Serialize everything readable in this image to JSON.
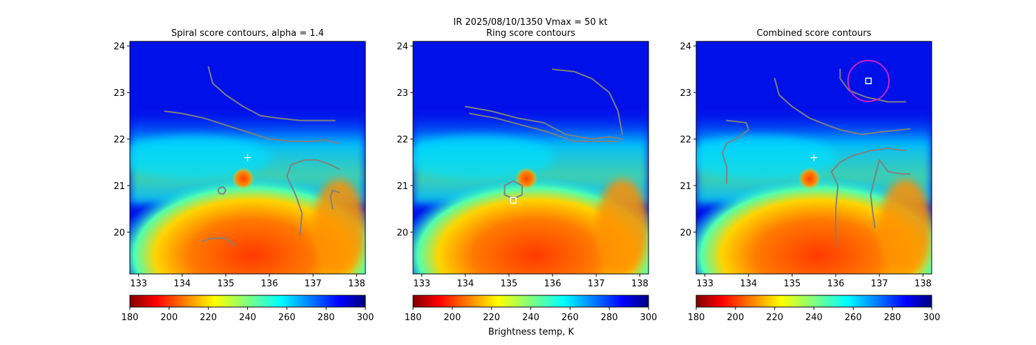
{
  "suptitle": "IR  2025/08/10/1350    Vmax = 50 kt",
  "colorbar_label": "Brightness temp, K",
  "colorbar": {
    "ticks": [
      180,
      200,
      220,
      240,
      260,
      280,
      300
    ],
    "range": [
      180,
      300
    ],
    "colormap": "jet_r"
  },
  "colors": {
    "contour": "#808080",
    "marker_cross": "#ffffff",
    "best_center": "#ffffff",
    "best_circle": "#cc22cc"
  },
  "chart_data": [
    {
      "type": "heatmap",
      "title": "Spiral score contours, alpha =  1.4",
      "xlim": [
        132.8,
        138.2
      ],
      "ylim": [
        19.1,
        24.1
      ],
      "xticks": [
        133,
        134,
        135,
        136,
        137,
        138
      ],
      "yticks": [
        20,
        21,
        22,
        23,
        24
      ],
      "cross_marker": [
        135.5,
        21.6
      ],
      "center_marker": null,
      "contours": [
        [
          [
            134.6,
            23.55
          ],
          [
            134.7,
            23.2
          ],
          [
            135.0,
            22.95
          ],
          [
            135.4,
            22.7
          ],
          [
            135.8,
            22.5
          ],
          [
            136.2,
            22.45
          ],
          [
            136.7,
            22.4
          ],
          [
            137.1,
            22.4
          ],
          [
            137.5,
            22.4
          ]
        ],
        [
          [
            133.6,
            22.6
          ],
          [
            134.0,
            22.55
          ],
          [
            134.5,
            22.45
          ],
          [
            135.0,
            22.3
          ],
          [
            135.5,
            22.15
          ],
          [
            136.0,
            22.0
          ],
          [
            136.5,
            21.95
          ],
          [
            137.0,
            21.95
          ],
          [
            137.3,
            21.98
          ],
          [
            137.6,
            21.9
          ]
        ],
        [
          [
            136.5,
            21.45
          ],
          [
            136.8,
            21.55
          ],
          [
            137.1,
            21.55
          ],
          [
            137.4,
            21.45
          ],
          [
            137.6,
            21.35
          ]
        ],
        [
          [
            136.5,
            21.45
          ],
          [
            136.4,
            21.2
          ],
          [
            136.6,
            20.8
          ],
          [
            136.75,
            20.4
          ],
          [
            136.7,
            19.95
          ]
        ],
        [
          [
            137.6,
            20.85
          ],
          [
            137.45,
            20.9
          ],
          [
            137.4,
            20.75
          ],
          [
            137.45,
            20.5
          ]
        ],
        [
          [
            134.45,
            19.8
          ],
          [
            134.7,
            19.87
          ],
          [
            135.0,
            19.87
          ],
          [
            135.2,
            19.72
          ]
        ],
        [
          [
            134.85,
            20.95
          ],
          [
            134.95,
            20.97
          ],
          [
            135.0,
            20.9
          ],
          [
            134.95,
            20.82
          ],
          [
            134.85,
            20.83
          ],
          [
            134.82,
            20.9
          ],
          [
            134.85,
            20.95
          ]
        ]
      ],
      "best_circle": null
    },
    {
      "type": "heatmap",
      "title": "Ring score contours",
      "xlim": [
        132.8,
        138.2
      ],
      "ylim": [
        19.1,
        24.1
      ],
      "xticks": [
        133,
        134,
        135,
        136,
        137,
        138
      ],
      "yticks": [
        20,
        21,
        22,
        23,
        24
      ],
      "cross_marker": null,
      "center_marker": [
        135.1,
        20.68
      ],
      "contours": [
        [
          [
            134.0,
            22.7
          ],
          [
            134.6,
            22.6
          ],
          [
            135.2,
            22.45
          ],
          [
            135.8,
            22.35
          ],
          [
            136.3,
            22.1
          ],
          [
            136.9,
            22.0
          ],
          [
            137.3,
            22.05
          ],
          [
            137.6,
            22.0
          ]
        ],
        [
          [
            134.1,
            22.55
          ],
          [
            134.7,
            22.45
          ],
          [
            135.3,
            22.3
          ],
          [
            135.9,
            22.15
          ],
          [
            136.5,
            21.95
          ],
          [
            137.0,
            21.95
          ],
          [
            137.5,
            21.95
          ]
        ],
        [
          [
            136.0,
            23.5
          ],
          [
            136.5,
            23.45
          ],
          [
            136.9,
            23.3
          ],
          [
            137.3,
            23.0
          ],
          [
            137.5,
            22.6
          ],
          [
            137.6,
            22.1
          ]
        ],
        [
          [
            134.9,
            21.0
          ],
          [
            135.1,
            21.1
          ],
          [
            135.3,
            21.0
          ],
          [
            135.3,
            20.8
          ],
          [
            135.1,
            20.72
          ],
          [
            134.9,
            20.8
          ],
          [
            134.9,
            21.0
          ]
        ]
      ],
      "best_circle": null
    },
    {
      "type": "heatmap",
      "title": "Combined score contours",
      "xlim": [
        132.8,
        138.2
      ],
      "ylim": [
        19.1,
        24.1
      ],
      "xticks": [
        133,
        134,
        135,
        136,
        137,
        138
      ],
      "yticks": [
        20,
        21,
        22,
        23,
        24
      ],
      "cross_marker": [
        135.5,
        21.6
      ],
      "center_marker": [
        136.75,
        23.25
      ],
      "contours": [
        [
          [
            136.1,
            23.5
          ],
          [
            136.1,
            23.3
          ],
          [
            136.3,
            23.05
          ],
          [
            136.7,
            22.9
          ],
          [
            137.2,
            22.8
          ],
          [
            137.6,
            22.8
          ]
        ],
        [
          [
            134.6,
            23.3
          ],
          [
            134.7,
            22.95
          ],
          [
            135.0,
            22.7
          ],
          [
            135.4,
            22.45
          ],
          [
            135.8,
            22.3
          ],
          [
            136.1,
            22.2
          ],
          [
            136.6,
            22.1
          ],
          [
            137.0,
            22.15
          ],
          [
            137.5,
            22.2
          ],
          [
            137.7,
            22.22
          ]
        ],
        [
          [
            135.9,
            21.3
          ],
          [
            136.1,
            21.5
          ],
          [
            136.4,
            21.65
          ],
          [
            136.8,
            21.75
          ],
          [
            137.2,
            21.8
          ],
          [
            137.6,
            21.75
          ]
        ],
        [
          [
            135.9,
            21.3
          ],
          [
            136.05,
            21.0
          ],
          [
            136.0,
            20.5
          ],
          [
            136.0,
            19.95
          ],
          [
            136.0,
            19.7
          ]
        ],
        [
          [
            137.0,
            21.55
          ],
          [
            136.9,
            21.2
          ],
          [
            136.8,
            20.8
          ],
          [
            136.85,
            20.4
          ],
          [
            136.9,
            20.1
          ]
        ],
        [
          [
            137.0,
            21.55
          ],
          [
            137.2,
            21.3
          ],
          [
            137.5,
            21.25
          ],
          [
            137.7,
            21.25
          ]
        ],
        [
          [
            133.5,
            21.9
          ],
          [
            133.4,
            21.7
          ],
          [
            133.5,
            21.4
          ],
          [
            133.5,
            21.05
          ]
        ],
        [
          [
            133.5,
            21.9
          ],
          [
            133.8,
            22.05
          ],
          [
            134.0,
            22.2
          ],
          [
            133.95,
            22.35
          ],
          [
            133.5,
            22.4
          ]
        ]
      ],
      "best_circle": {
        "center": [
          136.75,
          23.25
        ],
        "radius_deg": 0.47
      }
    }
  ]
}
